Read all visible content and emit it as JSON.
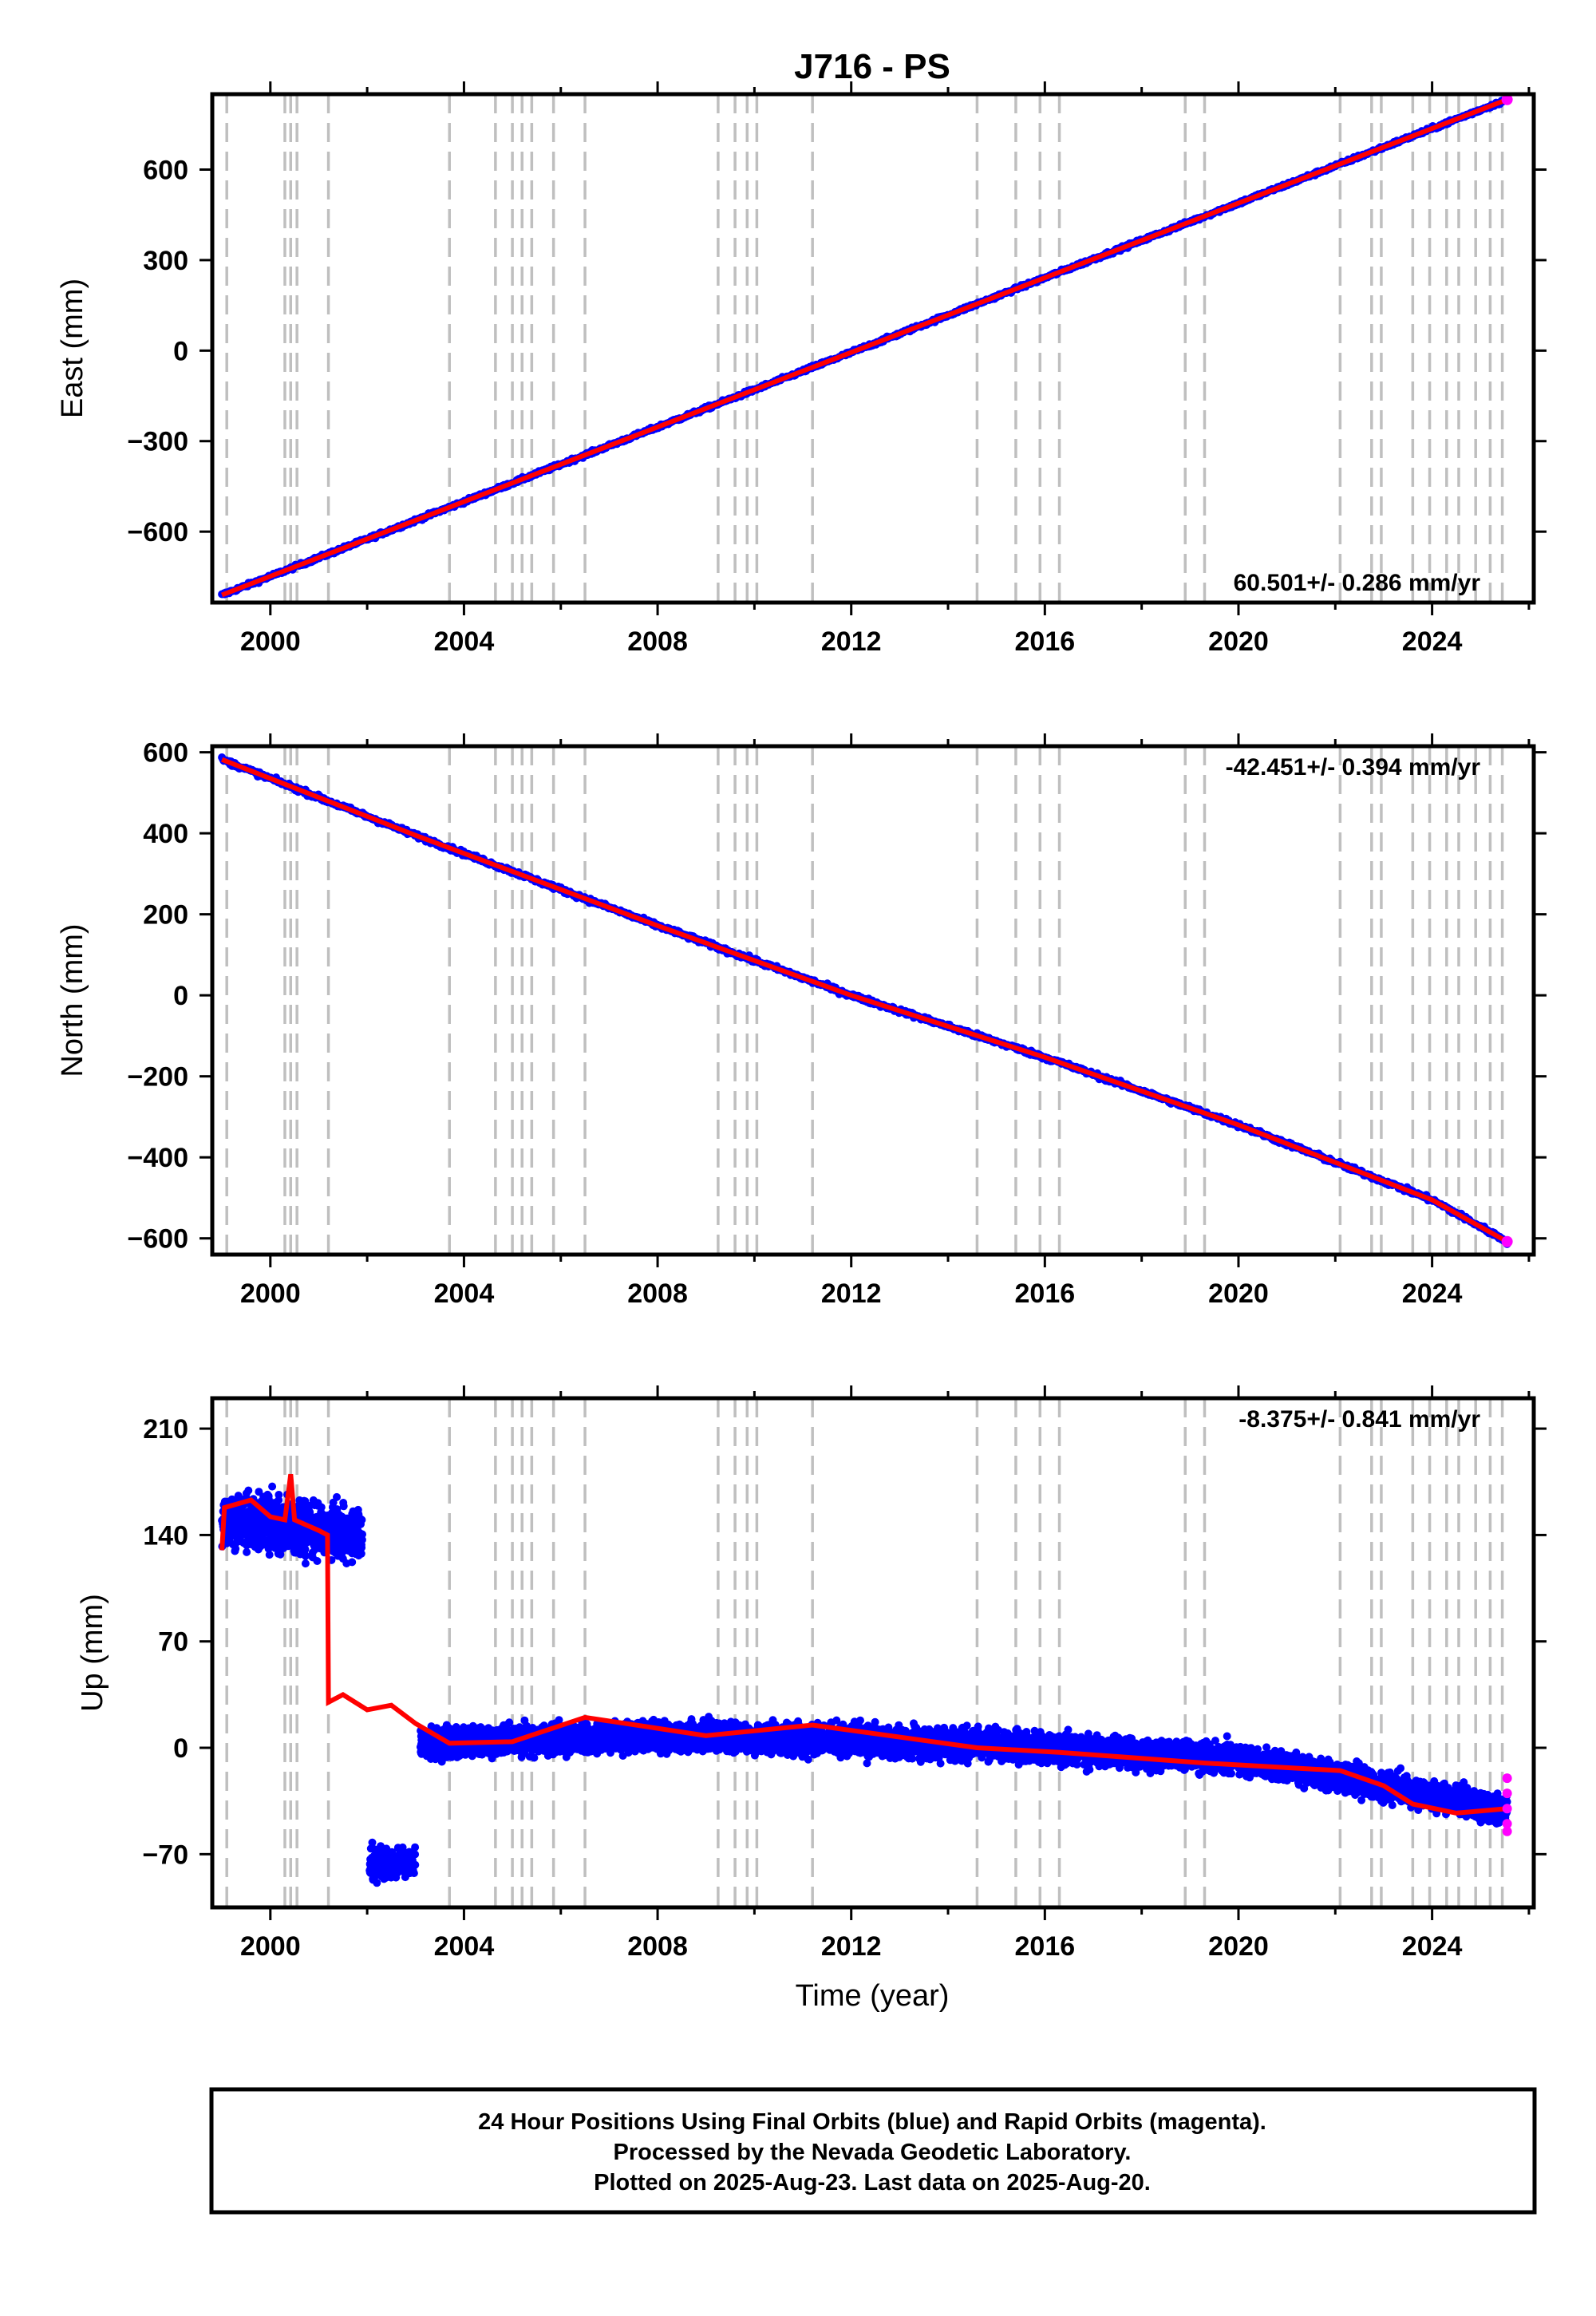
{
  "chart_data": {
    "type": "scatter",
    "title": "J716 - PS",
    "xlabel": "Time (year)",
    "x_range": [
      1998.8,
      2026.1
    ],
    "x_ticks": [
      2000,
      2004,
      2008,
      2012,
      2016,
      2020,
      2024
    ],
    "x_tick_labels": [
      "2000",
      "2004",
      "2008",
      "2012",
      "2016",
      "2020",
      "2024"
    ],
    "series_colors": {
      "final_orbits": "#0000ff",
      "rapid_orbits": "#ff00ff",
      "model": "#ff0000",
      "steps": "#bfbfbf"
    },
    "step_epochs": [
      1999.1,
      2000.3,
      2000.42,
      2000.55,
      2001.2,
      2003.7,
      2004.65,
      2005.0,
      2005.2,
      2005.4,
      2005.85,
      2006.5,
      2009.25,
      2009.6,
      2009.85,
      2010.05,
      2011.2,
      2014.6,
      2015.4,
      2015.9,
      2016.3,
      2018.9,
      2019.3,
      2022.1,
      2022.75,
      2022.95,
      2023.6,
      2023.95,
      2024.3,
      2024.55,
      2024.9,
      2025.2,
      2025.45
    ],
    "panels": [
      {
        "ylabel": "East (mm)",
        "y_range": [
          -835,
          850
        ],
        "y_ticks": [
          -600,
          -300,
          0,
          300,
          600
        ],
        "y_tick_labels": [
          "−600",
          "−300",
          "0",
          "300",
          "600"
        ],
        "rate_label": "60.501+/- 0.286 mm/yr",
        "rate_position": "bottom-right",
        "series": [
          {
            "name": "trend",
            "x": [
              1999.0,
              2025.55
            ],
            "y": [
              -810,
              832
            ]
          }
        ]
      },
      {
        "ylabel": "North (mm)",
        "y_range": [
          -640,
          615
        ],
        "y_ticks": [
          -600,
          -400,
          -200,
          0,
          200,
          400,
          600
        ],
        "y_tick_labels": [
          "−600",
          "−400",
          "−200",
          "0",
          "200",
          "400",
          "600"
        ],
        "rate_label": "-42.451+/- 0.394 mm/yr",
        "rate_position": "top-right",
        "series": [
          {
            "name": "trend",
            "x": [
              1999.0,
              2003.0,
              2008.0,
              2012.0,
              2016.0,
              2020.0,
              2024.0,
              2025.55
            ],
            "y": [
              582,
              395,
              172,
              0,
              -153,
              -320,
              -505,
              -608
            ]
          }
        ]
      },
      {
        "ylabel": "Up (mm)",
        "y_range": [
          -105,
          230
        ],
        "y_ticks": [
          -70,
          0,
          70,
          140,
          210
        ],
        "y_tick_labels": [
          "−70",
          "0",
          "70",
          "140",
          "210"
        ],
        "rate_label": "-8.375+/- 0.841 mm/yr",
        "rate_position": "top-right",
        "series": [
          {
            "name": "early_cluster",
            "x": [
              1999.0,
              2001.9
            ],
            "y": [
              150,
              140
            ],
            "spread": 22
          },
          {
            "name": "offset_cluster",
            "x": [
              2002.05,
              2003.0
            ],
            "y": [
              -76,
              -76
            ],
            "spread": 12
          },
          {
            "name": "main_cluster",
            "x": [
              2003.1,
              2008.0,
              2012.0,
              2016.0,
              2020.0,
              2023.0,
              2025.55
            ],
            "y": [
              3,
              8,
              5,
              0,
              -7,
              -25,
              -42
            ],
            "spread": 12
          },
          {
            "name": "model",
            "x": [
              1999.0,
              1999.05,
              1999.6,
              2000.0,
              2000.3,
              2000.42,
              2000.5,
              2001.0,
              2001.18,
              2001.2,
              2001.5,
              2002.0,
              2002.5,
              2003.0,
              2003.7,
              2005.0,
              2006.5,
              2009.0,
              2011.2,
              2014.6,
              2016.3,
              2019.3,
              2022.1,
              2023.0,
              2023.6,
              2024.5,
              2025.55
            ],
            "y": [
              130,
              158,
              163,
              152,
              150,
              180,
              150,
              143,
              140,
              30,
              35,
              25,
              28,
              16,
              3,
              4,
              20,
              8,
              15,
              0,
              -3,
              -10,
              -15,
              -25,
              -37,
              -43,
              -40
            ]
          }
        ]
      }
    ]
  },
  "caption": {
    "line1": "24 Hour Positions Using Final Orbits (blue) and Rapid Orbits (magenta).",
    "line2": "Processed by the Nevada Geodetic Laboratory.",
    "line3": "Plotted on 2025-Aug-23. Last data on 2025-Aug-20."
  }
}
